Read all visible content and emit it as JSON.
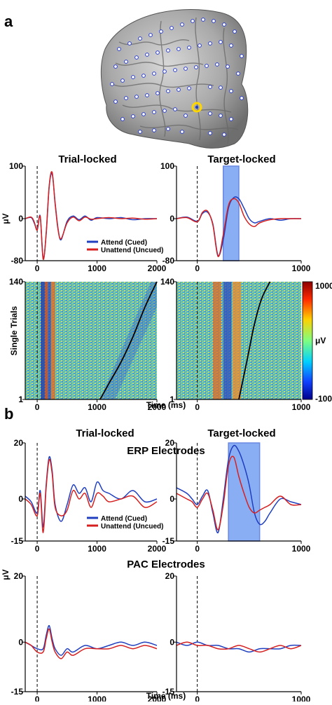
{
  "panel_a": {
    "letter": "a",
    "col_titles": [
      "Trial-locked",
      "Target-locked"
    ],
    "ylabel": "μV",
    "single_trials_label": "Single Trials",
    "colorbar": {
      "max": "1000",
      "min": "-100",
      "unit": "μV"
    },
    "xlabel": "Time (ms)"
  },
  "panel_b": {
    "letter": "b",
    "col_titles": [
      "Trial-locked",
      "Target-locked"
    ],
    "erp_title": "ERP Electrodes",
    "pac_title": "PAC Electrodes",
    "ylabel": "μV",
    "xlabel": "Time (ms)"
  },
  "legend": [
    "Attend (Cued)",
    "Unattend (Uncued)"
  ],
  "colors": {
    "attend": "#1f3fbf",
    "unattend": "#d62020",
    "highlight": "#5a8cf0",
    "electrode_hi": "#ffd700"
  },
  "chart_data": [
    {
      "id": "a_trial",
      "type": "line",
      "xlim": [
        -200,
        2000
      ],
      "ylim": [
        -80,
        100
      ],
      "xticks": [
        0,
        1000,
        2000
      ],
      "yticks": [
        -80,
        0,
        100
      ],
      "series": [
        {
          "name": "Attend (Cued)",
          "x": [
            -200,
            -100,
            -50,
            0,
            50,
            100,
            150,
            200,
            250,
            300,
            350,
            400,
            500,
            600,
            700,
            800,
            900,
            1000,
            1200,
            1400,
            1600,
            1800,
            2000
          ],
          "y": [
            0,
            2,
            -8,
            -20,
            5,
            -75,
            -30,
            60,
            85,
            30,
            -20,
            -40,
            -5,
            5,
            -2,
            5,
            -3,
            2,
            0,
            2,
            -2,
            0,
            0
          ]
        },
        {
          "name": "Unattend (Uncued)",
          "x": [
            -200,
            -100,
            -50,
            0,
            50,
            100,
            150,
            200,
            250,
            300,
            350,
            400,
            500,
            600,
            700,
            800,
            900,
            1000,
            1200,
            1400,
            1600,
            1800,
            2000
          ],
          "y": [
            0,
            3,
            -6,
            -22,
            4,
            -77,
            -28,
            62,
            88,
            28,
            -22,
            -38,
            -8,
            3,
            -4,
            3,
            -1,
            0,
            2,
            0,
            1,
            -1,
            0
          ]
        }
      ]
    },
    {
      "id": "a_target",
      "type": "line",
      "xlim": [
        -200,
        1000
      ],
      "ylim": [
        -80,
        100
      ],
      "xticks": [
        0,
        1000
      ],
      "yticks": [
        -80,
        0,
        100
      ],
      "series": [
        {
          "name": "Attend (Cued)",
          "x": [
            -200,
            -100,
            0,
            50,
            100,
            150,
            200,
            250,
            300,
            350,
            400,
            450,
            500,
            550,
            600,
            700,
            800,
            900,
            1000
          ],
          "y": [
            0,
            3,
            -5,
            10,
            12,
            -10,
            -70,
            -40,
            20,
            40,
            38,
            20,
            0,
            -8,
            -5,
            0,
            -3,
            0,
            0
          ]
        },
        {
          "name": "Unattend (Uncued)",
          "x": [
            -200,
            -100,
            0,
            50,
            100,
            150,
            200,
            250,
            300,
            350,
            400,
            450,
            500,
            550,
            600,
            700,
            800,
            900,
            1000
          ],
          "y": [
            0,
            2,
            -6,
            12,
            14,
            -12,
            -72,
            -30,
            25,
            38,
            30,
            5,
            -10,
            -15,
            -8,
            -2,
            0,
            0,
            0
          ]
        }
      ]
    },
    {
      "id": "b_trial",
      "type": "line",
      "xlim": [
        -200,
        2000
      ],
      "ylim": [
        -15,
        20
      ],
      "xticks": [
        0,
        1000,
        2000
      ],
      "yticks": [
        -15,
        0,
        20
      ],
      "series": [
        {
          "name": "Attend (Cued)",
          "x": [
            -200,
            -100,
            0,
            50,
            100,
            150,
            200,
            250,
            300,
            400,
            500,
            600,
            700,
            800,
            900,
            1000,
            1100,
            1200,
            1400,
            1600,
            1800,
            2000
          ],
          "y": [
            1,
            -1,
            -5,
            3,
            -10,
            5,
            15,
            10,
            -2,
            -8,
            -2,
            5,
            2,
            4,
            -1,
            6,
            3,
            2,
            0,
            3,
            -1,
            0
          ]
        },
        {
          "name": "Unattend (Uncued)",
          "x": [
            -200,
            -100,
            0,
            50,
            100,
            150,
            200,
            250,
            300,
            400,
            500,
            600,
            700,
            800,
            900,
            1000,
            1100,
            1200,
            1400,
            1600,
            1800,
            2000
          ],
          "y": [
            0,
            -2,
            -6,
            2,
            -12,
            4,
            14,
            9,
            -3,
            -6,
            -4,
            3,
            0,
            2,
            -3,
            2,
            1,
            -1,
            0,
            1,
            -3,
            -1
          ]
        }
      ]
    },
    {
      "id": "b_target",
      "type": "line",
      "xlim": [
        -200,
        1000
      ],
      "ylim": [
        -15,
        20
      ],
      "xticks": [
        0,
        1000
      ],
      "yticks": [
        -15,
        0,
        20
      ],
      "series": [
        {
          "name": "Attend (Cued)",
          "x": [
            -200,
            -100,
            -50,
            0,
            50,
            100,
            150,
            200,
            250,
            300,
            350,
            400,
            450,
            500,
            550,
            600,
            650,
            700,
            800,
            900,
            1000
          ],
          "y": [
            4,
            2,
            0,
            -2,
            1,
            3,
            -5,
            -12,
            0,
            14,
            19,
            17,
            12,
            5,
            -5,
            -9,
            -8,
            -5,
            0,
            -1,
            -2
          ]
        },
        {
          "name": "Unattend (Uncued)",
          "x": [
            -200,
            -100,
            -50,
            0,
            50,
            100,
            150,
            200,
            250,
            300,
            350,
            400,
            450,
            500,
            550,
            600,
            650,
            700,
            800,
            900,
            1000
          ],
          "y": [
            2,
            0,
            -1,
            -3,
            0,
            2,
            -4,
            -11,
            -2,
            12,
            15,
            8,
            2,
            -3,
            -5,
            -4,
            -3,
            -2,
            1,
            -2,
            -2
          ]
        }
      ]
    },
    {
      "id": "b_pac_trial",
      "type": "line",
      "xlim": [
        -200,
        2000
      ],
      "ylim": [
        -15,
        20
      ],
      "xticks": [
        0,
        1000,
        2000
      ],
      "yticks": [
        -15,
        0,
        20
      ],
      "series": [
        {
          "name": "Attend (Cued)",
          "x": [
            -200,
            -100,
            0,
            100,
            150,
            200,
            250,
            300,
            400,
            500,
            600,
            800,
            1000,
            1200,
            1400,
            1600,
            1800,
            2000
          ],
          "y": [
            0,
            -1,
            -2,
            -2,
            2,
            5,
            1,
            -2,
            -4,
            -2,
            -3,
            -1,
            -2,
            -1,
            0,
            -1,
            0,
            -1
          ]
        },
        {
          "name": "Unattend (Uncued)",
          "x": [
            -200,
            -100,
            0,
            100,
            150,
            200,
            250,
            300,
            400,
            500,
            600,
            800,
            1000,
            1200,
            1400,
            1600,
            1800,
            2000
          ],
          "y": [
            0,
            -1,
            -3,
            -3,
            1,
            4,
            0,
            -3,
            -5,
            -3,
            -4,
            -2,
            -2,
            -2,
            -1,
            -2,
            -1,
            -2
          ]
        }
      ]
    },
    {
      "id": "b_pac_target",
      "type": "line",
      "xlim": [
        -200,
        1000
      ],
      "ylim": [
        -15,
        20
      ],
      "xticks": [
        0,
        1000
      ],
      "yticks": [
        -15,
        0,
        20
      ],
      "series": [
        {
          "name": "Attend (Cued)",
          "x": [
            -200,
            -100,
            0,
            100,
            200,
            300,
            400,
            500,
            600,
            700,
            800,
            900,
            1000
          ],
          "y": [
            0,
            -1,
            0,
            -1,
            -1,
            -2,
            -2,
            -3,
            -2,
            -2,
            -2,
            -1,
            -1
          ]
        },
        {
          "name": "Unattend (Uncued)",
          "x": [
            -200,
            -100,
            0,
            100,
            200,
            300,
            400,
            500,
            600,
            700,
            800,
            900,
            1000
          ],
          "y": [
            -1,
            0,
            -1,
            -1,
            -2,
            -2,
            -1,
            -2,
            -3,
            -2,
            -1,
            -2,
            -1
          ]
        }
      ]
    },
    {
      "id": "a_trial_heat",
      "type": "heatmap",
      "xlim": [
        -200,
        2000
      ],
      "ylim": [
        1,
        140
      ],
      "xticks": [
        0,
        1000,
        2000
      ],
      "yticks": [
        1,
        140
      ],
      "rt_curve": {
        "x": [
          1050,
          1200,
          1400,
          1600,
          1800,
          2000
        ],
        "trial": [
          1,
          20,
          45,
          75,
          110,
          140
        ]
      }
    },
    {
      "id": "a_target_heat",
      "type": "heatmap",
      "xlim": [
        -200,
        1000
      ],
      "ylim": [
        1,
        140
      ],
      "xticks": [
        0,
        1000
      ],
      "yticks": [
        1,
        140
      ],
      "rt_curve": {
        "x": [
          400,
          450,
          500,
          550,
          620,
          700
        ],
        "trial": [
          1,
          30,
          60,
          90,
          120,
          140
        ]
      }
    }
  ]
}
